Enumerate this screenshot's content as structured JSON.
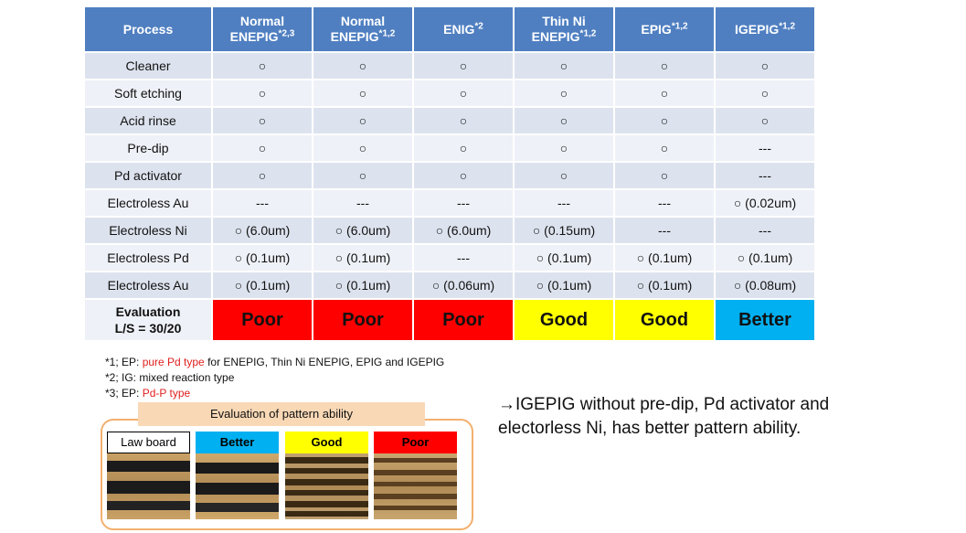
{
  "table": {
    "header": {
      "process": "Process",
      "columns": [
        {
          "line1": "Normal",
          "line2": "ENEPIG",
          "sup": "*2,3"
        },
        {
          "line1": "Normal",
          "line2": "ENEPIG",
          "sup": "*1,2"
        },
        {
          "line1": "ENIG",
          "line2": "",
          "sup": "*2"
        },
        {
          "line1": "Thin Ni",
          "line2": "ENEPIG",
          "sup": "*1,2"
        },
        {
          "line1": "EPIG",
          "line2": "",
          "sup": "*1,2"
        },
        {
          "line1": "IGEPIG",
          "line2": "",
          "sup": "*1,2"
        }
      ]
    },
    "rows": [
      {
        "label": "Cleaner",
        "cells": [
          "○",
          "○",
          "○",
          "○",
          "○",
          "○"
        ]
      },
      {
        "label": "Soft etching",
        "cells": [
          "○",
          "○",
          "○",
          "○",
          "○",
          "○"
        ]
      },
      {
        "label": "Acid rinse",
        "cells": [
          "○",
          "○",
          "○",
          "○",
          "○",
          "○"
        ]
      },
      {
        "label": "Pre-dip",
        "cells": [
          "○",
          "○",
          "○",
          "○",
          "○",
          "---"
        ]
      },
      {
        "label": "Pd activator",
        "cells": [
          "○",
          "○",
          "○",
          "○",
          "○",
          "---"
        ]
      },
      {
        "label": "Electroless Au",
        "cells": [
          "---",
          "---",
          "---",
          "---",
          "---",
          "○ (0.02um)"
        ]
      },
      {
        "label": "Electroless Ni",
        "cells": [
          "○ (6.0um)",
          "○ (6.0um)",
          "○ (6.0um)",
          "○ (0.15um)",
          "---",
          "---"
        ]
      },
      {
        "label": "Electroless Pd",
        "cells": [
          "○ (0.1um)",
          "○ (0.1um)",
          "---",
          "○ (0.1um)",
          "○ (0.1um)",
          "○ (0.1um)"
        ]
      },
      {
        "label": "Electroless Au",
        "cells": [
          "○ (0.1um)",
          "○ (0.1um)",
          "○ (0.06um)",
          "○ (0.1um)",
          "○ (0.1um)",
          "○ (0.08um)"
        ]
      }
    ],
    "evaluation": {
      "label_line1": "Evaluation",
      "label_line2": "L/S = 30/20",
      "cells": [
        {
          "text": "Poor",
          "color": "#ff0000"
        },
        {
          "text": "Poor",
          "color": "#ff0000"
        },
        {
          "text": "Poor",
          "color": "#ff0000"
        },
        {
          "text": "Good",
          "color": "#ffff00"
        },
        {
          "text": "Good",
          "color": "#ffff00"
        },
        {
          "text": "Better",
          "color": "#00b0f0"
        }
      ]
    }
  },
  "footnotes": [
    {
      "prefix": "*1; EP: ",
      "highlight": "pure Pd type",
      "suffix": " for ENEPIG, Thin Ni ENEPIG, EPIG and IGEPIG"
    },
    {
      "prefix": "*2; IG: mixed reaction type",
      "highlight": "",
      "suffix": ""
    },
    {
      "prefix": "*3; EP: ",
      "highlight": "Pd-P type",
      "suffix": ""
    }
  ],
  "pattern": {
    "title": "Evaluation of pattern ability",
    "samples": [
      {
        "label": "Law board",
        "label_bg": "#ffffff",
        "label_color": "#000000",
        "bordered": true
      },
      {
        "label": "Better",
        "label_bg": "#00b0f0",
        "label_color": "#000000",
        "bordered": false
      },
      {
        "label": "Good",
        "label_bg": "#ffff00",
        "label_color": "#000000",
        "bordered": false
      },
      {
        "label": "Poor",
        "label_bg": "#ff0000",
        "label_color": "#000000",
        "bordered": false
      }
    ]
  },
  "conclusion": {
    "line1": "→IGEPIG without pre-dip, Pd activator and",
    "line2": "electorless Ni, has better pattern ability."
  }
}
